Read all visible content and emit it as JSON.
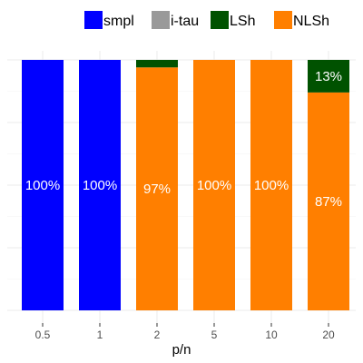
{
  "chart_data": {
    "type": "bar",
    "stacked": true,
    "normalized": true,
    "xlabel": "p/n",
    "ylabel": "",
    "ylim": [
      0,
      1
    ],
    "grid": true,
    "legend_position": "top",
    "categories": [
      "0.5",
      "1",
      "2",
      "5",
      "10",
      "20"
    ],
    "series": [
      {
        "name": "smpl",
        "color": "#0000ff",
        "values": [
          1.0,
          1.0,
          0.0,
          0.0,
          0.0,
          0.0
        ]
      },
      {
        "name": "i-tau",
        "color": "#999999",
        "values": [
          0.0,
          0.0,
          0.0,
          0.0,
          0.0,
          0.0
        ]
      },
      {
        "name": "LSh",
        "color": "#005200",
        "values": [
          0.0,
          0.0,
          0.03,
          0.0,
          0.0,
          0.13
        ]
      },
      {
        "name": "NLSh",
        "color": "#ff7f00",
        "values": [
          0.0,
          0.0,
          0.97,
          1.0,
          1.0,
          0.87
        ]
      }
    ],
    "labels": [
      {
        "category": "0.5",
        "series": "smpl",
        "text": "100%"
      },
      {
        "category": "1",
        "series": "smpl",
        "text": "100%"
      },
      {
        "category": "2",
        "series": "NLSh",
        "text": "97%"
      },
      {
        "category": "5",
        "series": "NLSh",
        "text": "100%"
      },
      {
        "category": "10",
        "series": "NLSh",
        "text": "100%"
      },
      {
        "category": "20",
        "series": "NLSh",
        "text": "87%"
      },
      {
        "category": "20",
        "series": "LSh",
        "text": "13%"
      }
    ]
  }
}
